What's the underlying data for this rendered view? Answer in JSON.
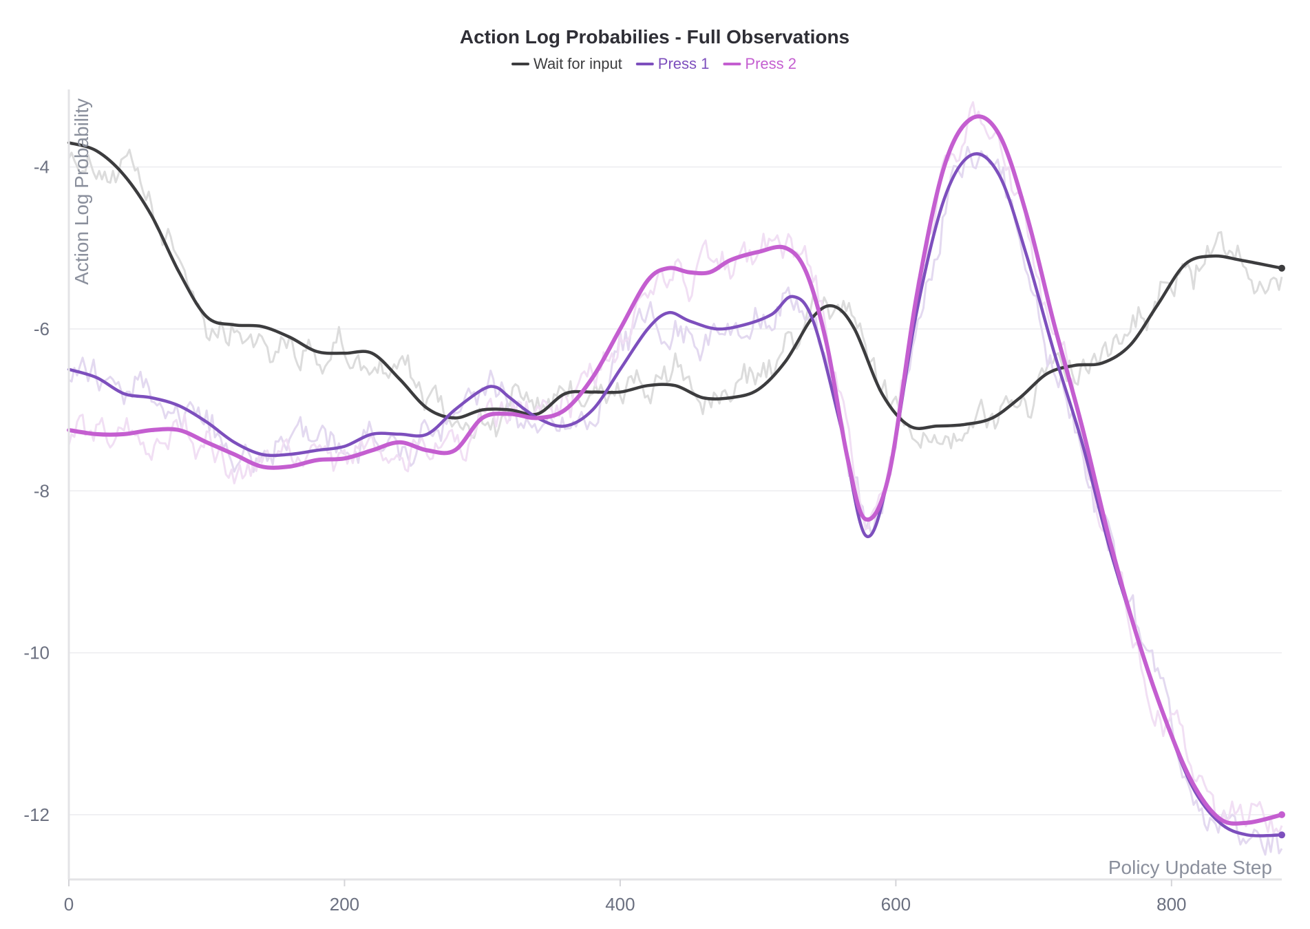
{
  "chart_data": {
    "type": "line",
    "title": "Action Log Probabilies - Full Observations",
    "xlabel": "Policy Update Step",
    "ylabel": "Action Log Probability",
    "xlim": [
      0,
      880
    ],
    "ylim": [
      -12.8,
      -3.0
    ],
    "xticks": [
      0,
      200,
      400,
      600,
      800
    ],
    "yticks": [
      -4,
      -6,
      -8,
      -10,
      -12
    ],
    "grid": "horizontal",
    "legend_position": "top-center",
    "series": [
      {
        "name": "Wait for input",
        "color": "#3c3c3e",
        "raw_color": "#dcdcdc",
        "x": [
          0,
          20,
          40,
          60,
          80,
          100,
          120,
          140,
          160,
          180,
          200,
          220,
          240,
          260,
          280,
          300,
          320,
          340,
          360,
          380,
          400,
          420,
          440,
          460,
          480,
          500,
          520,
          540,
          555,
          570,
          590,
          610,
          630,
          650,
          670,
          690,
          710,
          730,
          750,
          770,
          790,
          810,
          830,
          850,
          880
        ],
        "y": [
          -3.7,
          -3.8,
          -4.1,
          -4.6,
          -5.3,
          -5.85,
          -5.95,
          -5.97,
          -6.1,
          -6.28,
          -6.3,
          -6.3,
          -6.62,
          -6.98,
          -7.1,
          -7.0,
          -7.0,
          -7.05,
          -6.8,
          -6.78,
          -6.78,
          -6.7,
          -6.7,
          -6.85,
          -6.85,
          -6.75,
          -6.4,
          -5.85,
          -5.72,
          -6.0,
          -6.8,
          -7.2,
          -7.2,
          -7.18,
          -7.1,
          -6.85,
          -6.55,
          -6.45,
          -6.42,
          -6.2,
          -5.7,
          -5.2,
          -5.1,
          -5.15,
          -5.25
        ]
      },
      {
        "name": "Press 1",
        "color": "#7d4fbd",
        "raw_color": "#e3d9f0",
        "x": [
          0,
          20,
          40,
          60,
          80,
          100,
          120,
          140,
          160,
          180,
          200,
          220,
          240,
          260,
          280,
          300,
          310,
          320,
          340,
          360,
          380,
          400,
          420,
          435,
          450,
          470,
          490,
          510,
          525,
          540,
          560,
          578,
          595,
          615,
          635,
          655,
          675,
          695,
          715,
          735,
          755,
          775,
          795,
          815,
          835,
          855,
          880
        ],
        "y": [
          -6.5,
          -6.6,
          -6.8,
          -6.85,
          -6.95,
          -7.15,
          -7.4,
          -7.55,
          -7.55,
          -7.5,
          -7.45,
          -7.3,
          -7.3,
          -7.3,
          -7.0,
          -6.75,
          -6.72,
          -6.85,
          -7.1,
          -7.2,
          -7.0,
          -6.5,
          -6.0,
          -5.8,
          -5.9,
          -6.0,
          -5.95,
          -5.82,
          -5.6,
          -5.9,
          -7.2,
          -8.55,
          -7.8,
          -5.8,
          -4.4,
          -3.85,
          -4.1,
          -5.1,
          -6.3,
          -7.4,
          -8.7,
          -9.8,
          -10.8,
          -11.65,
          -12.1,
          -12.25,
          -12.25
        ]
      },
      {
        "name": "Press 2",
        "color": "#c45ed0",
        "raw_color": "#f1dff4",
        "x": [
          0,
          20,
          40,
          60,
          80,
          100,
          120,
          140,
          160,
          180,
          200,
          220,
          240,
          260,
          280,
          300,
          320,
          340,
          360,
          380,
          400,
          420,
          435,
          450,
          465,
          480,
          500,
          520,
          535,
          550,
          565,
          578,
          595,
          615,
          635,
          655,
          675,
          695,
          715,
          735,
          755,
          775,
          795,
          815,
          835,
          855,
          880
        ],
        "y": [
          -7.25,
          -7.3,
          -7.3,
          -7.25,
          -7.25,
          -7.4,
          -7.55,
          -7.7,
          -7.7,
          -7.62,
          -7.6,
          -7.5,
          -7.4,
          -7.5,
          -7.5,
          -7.1,
          -7.05,
          -7.1,
          -7.0,
          -6.6,
          -6.0,
          -5.4,
          -5.25,
          -5.3,
          -5.3,
          -5.15,
          -5.05,
          -5.0,
          -5.3,
          -6.2,
          -7.6,
          -8.35,
          -7.8,
          -5.6,
          -4.0,
          -3.4,
          -3.6,
          -4.6,
          -5.95,
          -7.2,
          -8.6,
          -9.8,
          -10.8,
          -11.6,
          -12.05,
          -12.1,
          -12.0
        ]
      }
    ]
  }
}
